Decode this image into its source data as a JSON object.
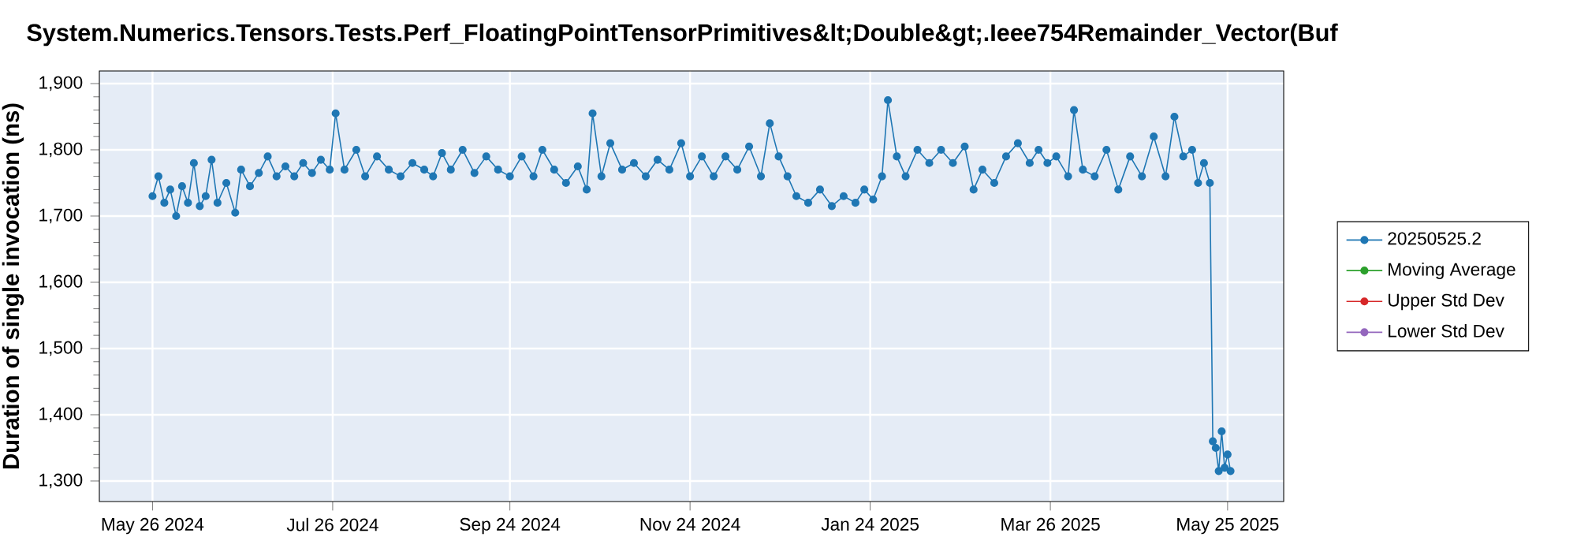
{
  "chart_data": {
    "type": "line",
    "title": "System.Numerics.Tensors.Tests.Perf_FloatingPointTensorPrimitives&lt;Double&gt;.Ieee754Remainder_Vector(Buf",
    "ylabel": "Duration of single invocation (ns)",
    "x": [
      "2024-05-26",
      "2024-05-28",
      "2024-05-30",
      "2024-06-01",
      "2024-06-03",
      "2024-06-05",
      "2024-06-07",
      "2024-06-09",
      "2024-06-11",
      "2024-06-13",
      "2024-06-15",
      "2024-06-17",
      "2024-06-20",
      "2024-06-23",
      "2024-06-25",
      "2024-06-28",
      "2024-07-01",
      "2024-07-04",
      "2024-07-07",
      "2024-07-10",
      "2024-07-13",
      "2024-07-16",
      "2024-07-19",
      "2024-07-22",
      "2024-07-25",
      "2024-07-27",
      "2024-07-30",
      "2024-08-03",
      "2024-08-06",
      "2024-08-10",
      "2024-08-14",
      "2024-08-18",
      "2024-08-22",
      "2024-08-26",
      "2024-08-29",
      "2024-09-01",
      "2024-09-04",
      "2024-09-08",
      "2024-09-12",
      "2024-09-16",
      "2024-09-20",
      "2024-09-24",
      "2024-09-28",
      "2024-10-02",
      "2024-10-05",
      "2024-10-09",
      "2024-10-13",
      "2024-10-17",
      "2024-10-20",
      "2024-10-22",
      "2024-10-25",
      "2024-10-28",
      "2024-11-01",
      "2024-11-05",
      "2024-11-09",
      "2024-11-13",
      "2024-11-17",
      "2024-11-21",
      "2024-11-24",
      "2024-11-28",
      "2024-12-02",
      "2024-12-06",
      "2024-12-10",
      "2024-12-14",
      "2024-12-18",
      "2024-12-21",
      "2024-12-24",
      "2024-12-27",
      "2024-12-30",
      "2025-01-03",
      "2025-01-07",
      "2025-01-11",
      "2025-01-15",
      "2025-01-19",
      "2025-01-22",
      "2025-01-25",
      "2025-01-28",
      "2025-01-30",
      "2025-02-02",
      "2025-02-05",
      "2025-02-09",
      "2025-02-13",
      "2025-02-17",
      "2025-02-21",
      "2025-02-25",
      "2025-02-28",
      "2025-03-03",
      "2025-03-07",
      "2025-03-11",
      "2025-03-15",
      "2025-03-19",
      "2025-03-22",
      "2025-03-25",
      "2025-03-28",
      "2025-04-01",
      "2025-04-03",
      "2025-04-06",
      "2025-04-10",
      "2025-04-14",
      "2025-04-18",
      "2025-04-22",
      "2025-04-26",
      "2025-04-30",
      "2025-05-04",
      "2025-05-07",
      "2025-05-10",
      "2025-05-13",
      "2025-05-15",
      "2025-05-17",
      "2025-05-19",
      "2025-05-20",
      "2025-05-21",
      "2025-05-22",
      "2025-05-23",
      "2025-05-24",
      "2025-05-25",
      "2025-05-26"
    ],
    "series": [
      {
        "name": "20250525.2",
        "color": "#1f77b4",
        "values": [
          1730,
          1760,
          1720,
          1740,
          1700,
          1745,
          1720,
          1780,
          1715,
          1730,
          1785,
          1720,
          1750,
          1705,
          1770,
          1745,
          1765,
          1790,
          1760,
          1775,
          1760,
          1780,
          1765,
          1785,
          1770,
          1855,
          1770,
          1800,
          1760,
          1790,
          1770,
          1760,
          1780,
          1770,
          1760,
          1795,
          1770,
          1800,
          1765,
          1790,
          1770,
          1760,
          1790,
          1760,
          1800,
          1770,
          1750,
          1775,
          1740,
          1855,
          1760,
          1810,
          1770,
          1780,
          1760,
          1785,
          1770,
          1810,
          1760,
          1790,
          1760,
          1790,
          1770,
          1805,
          1760,
          1840,
          1790,
          1760,
          1730,
          1720,
          1740,
          1715,
          1730,
          1720,
          1740,
          1725,
          1760,
          1875,
          1790,
          1760,
          1800,
          1780,
          1800,
          1780,
          1805,
          1740,
          1770,
          1750,
          1790,
          1810,
          1780,
          1800,
          1780,
          1790,
          1760,
          1860,
          1770,
          1760,
          1800,
          1740,
          1790,
          1760,
          1820,
          1760,
          1850,
          1790,
          1800,
          1750,
          1780,
          1750,
          1360,
          1350,
          1315,
          1375,
          1320,
          1340,
          1315
        ]
      },
      {
        "name": "Moving Average",
        "color": "#2ca02c",
        "values": [
          null,
          null,
          null,
          null,
          null,
          null,
          null,
          null,
          null,
          null,
          null,
          null,
          null,
          null,
          null,
          null,
          null,
          null,
          null,
          null,
          null,
          null,
          null,
          null,
          null,
          null,
          null,
          null,
          null,
          null,
          null,
          null,
          null,
          null,
          null,
          null,
          null,
          null,
          null,
          null,
          null,
          null,
          null,
          null,
          null,
          null,
          null,
          null,
          null,
          null,
          null,
          null,
          null,
          null,
          null,
          null,
          null,
          null,
          null,
          null,
          null,
          null,
          null,
          null,
          null,
          null,
          null,
          null,
          null,
          null,
          null,
          null,
          null,
          null,
          null,
          null,
          null,
          null,
          null,
          null,
          null,
          null,
          null,
          null,
          null,
          null,
          null,
          null,
          null,
          null,
          null,
          null,
          null,
          null,
          null,
          null,
          null,
          null,
          null,
          null,
          null,
          null,
          null,
          null,
          null,
          null,
          null,
          null,
          null,
          null,
          null,
          null,
          null,
          null,
          null,
          null,
          null
        ]
      },
      {
        "name": "Upper Std Dev",
        "color": "#d62728",
        "values": [
          null,
          null,
          null,
          null,
          null,
          null,
          null,
          null,
          null,
          null,
          null,
          null,
          null,
          null,
          null,
          null,
          null,
          null,
          null,
          null,
          null,
          null,
          null,
          null,
          null,
          null,
          null,
          null,
          null,
          null,
          null,
          null,
          null,
          null,
          null,
          null,
          null,
          null,
          null,
          null,
          null,
          null,
          null,
          null,
          null,
          null,
          null,
          null,
          null,
          null,
          null,
          null,
          null,
          null,
          null,
          null,
          null,
          null,
          null,
          null,
          null,
          null,
          null,
          null,
          null,
          null,
          null,
          null,
          null,
          null,
          null,
          null,
          null,
          null,
          null,
          null,
          null,
          null,
          null,
          null,
          null,
          null,
          null,
          null,
          null,
          null,
          null,
          null,
          null,
          null,
          null,
          null,
          null,
          null,
          null,
          null,
          null,
          null,
          null,
          null,
          null,
          null,
          null,
          null,
          null,
          null,
          null,
          null,
          null,
          null,
          null,
          null,
          null,
          null,
          null,
          null,
          null
        ]
      },
      {
        "name": "Lower Std Dev",
        "color": "#9467bd",
        "values": [
          null,
          null,
          null,
          null,
          null,
          null,
          null,
          null,
          null,
          null,
          null,
          null,
          null,
          null,
          null,
          null,
          null,
          null,
          null,
          null,
          null,
          null,
          null,
          null,
          null,
          null,
          null,
          null,
          null,
          null,
          null,
          null,
          null,
          null,
          null,
          null,
          null,
          null,
          null,
          null,
          null,
          null,
          null,
          null,
          null,
          null,
          null,
          null,
          null,
          null,
          null,
          null,
          null,
          null,
          null,
          null,
          null,
          null,
          null,
          null,
          null,
          null,
          null,
          null,
          null,
          null,
          null,
          null,
          null,
          null,
          null,
          null,
          null,
          null,
          null,
          null,
          null,
          null,
          null,
          null,
          null,
          null,
          null,
          null,
          null,
          null,
          null,
          null,
          null,
          null,
          null,
          null,
          null,
          null,
          null,
          null,
          null,
          null,
          null,
          null,
          null,
          null,
          null,
          null,
          null,
          null,
          null,
          null,
          null,
          null,
          null,
          null,
          null,
          null,
          null,
          null,
          null
        ]
      }
    ],
    "xlim": [
      "2024-05-08",
      "2025-06-13"
    ],
    "xticks": [
      {
        "value": "2024-05-26",
        "label": "May 26 2024"
      },
      {
        "value": "2024-07-26",
        "label": "Jul 26 2024"
      },
      {
        "value": "2024-09-24",
        "label": "Sep 24 2024"
      },
      {
        "value": "2024-11-24",
        "label": "Nov 24 2024"
      },
      {
        "value": "2025-01-24",
        "label": "Jan 24 2025"
      },
      {
        "value": "2025-03-26",
        "label": "Mar 26 2025"
      },
      {
        "value": "2025-05-25",
        "label": "May 25 2025"
      }
    ],
    "ylim": [
      1269,
      1919
    ],
    "yticks": [
      {
        "value": 1300,
        "label": "1,300"
      },
      {
        "value": 1400,
        "label": "1,400"
      },
      {
        "value": 1500,
        "label": "1,500"
      },
      {
        "value": 1600,
        "label": "1,600"
      },
      {
        "value": 1700,
        "label": "1,700"
      },
      {
        "value": 1800,
        "label": "1,800"
      },
      {
        "value": 1900,
        "label": "1,900"
      }
    ],
    "grid": true,
    "legend": "right",
    "marker": "circle",
    "line_style": "solid"
  }
}
